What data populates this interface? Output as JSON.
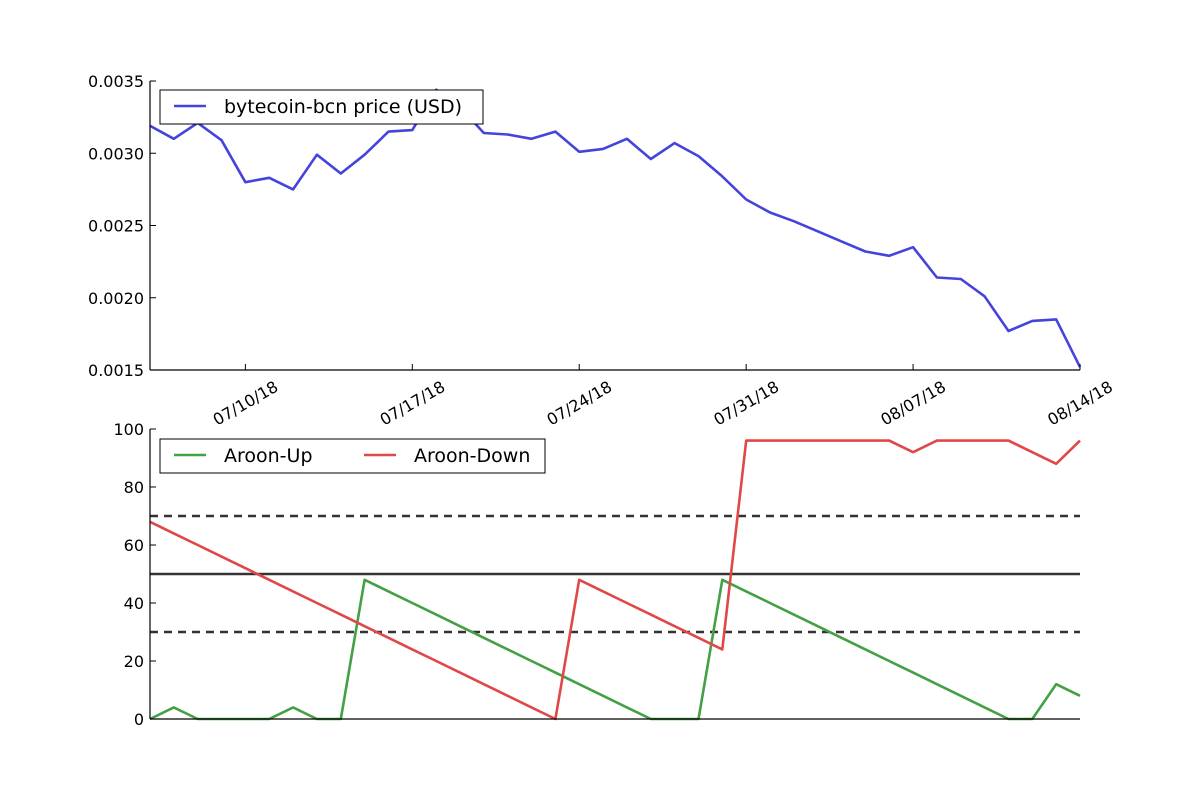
{
  "chart_data": [
    {
      "type": "line",
      "title": "",
      "xlabel": "",
      "ylabel": "",
      "x_tick_labels": [
        "07/10/18",
        "07/17/18",
        "07/24/18",
        "07/31/18",
        "08/07/18",
        "08/14/18"
      ],
      "y_tick_labels": [
        "0.0015",
        "0.0020",
        "0.0025",
        "0.0030",
        "0.0035"
      ],
      "ylim": [
        0.0015,
        0.0035
      ],
      "xlim": [
        "07/06/18",
        "08/14/18"
      ],
      "grid": false,
      "legend_position": "top-left",
      "x": [
        "07/06/18",
        "07/07/18",
        "07/08/18",
        "07/09/18",
        "07/10/18",
        "07/11/18",
        "07/12/18",
        "07/13/18",
        "07/14/18",
        "07/15/18",
        "07/16/18",
        "07/17/18",
        "07/18/18",
        "07/19/18",
        "07/20/18",
        "07/21/18",
        "07/22/18",
        "07/23/18",
        "07/24/18",
        "07/25/18",
        "07/26/18",
        "07/27/18",
        "07/28/18",
        "07/29/18",
        "07/30/18",
        "07/31/18",
        "08/01/18",
        "08/02/18",
        "08/03/18",
        "08/04/18",
        "08/05/18",
        "08/06/18",
        "08/07/18",
        "08/08/18",
        "08/09/18",
        "08/10/18",
        "08/11/18",
        "08/12/18",
        "08/13/18",
        "08/14/18"
      ],
      "series": [
        {
          "name": "bytecoin-bcn price (USD)",
          "color": "#4444dd",
          "values": [
            0.00319,
            0.0031,
            0.00321,
            0.00309,
            0.0028,
            0.00283,
            0.00275,
            0.00299,
            0.00286,
            0.00299,
            0.00315,
            0.00316,
            0.00344,
            0.00332,
            0.00314,
            0.00313,
            0.0031,
            0.00315,
            0.00301,
            0.00303,
            0.0031,
            0.00296,
            0.00307,
            0.00298,
            0.00284,
            0.00268,
            0.00259,
            0.00253,
            0.00246,
            0.00239,
            0.00232,
            0.00229,
            0.00235,
            0.00214,
            0.00213,
            0.00201,
            0.00177,
            0.00184,
            0.00185,
            0.00152
          ]
        }
      ]
    },
    {
      "type": "line",
      "title": "",
      "xlabel": "",
      "ylabel": "",
      "y_tick_labels": [
        "0",
        "20",
        "40",
        "60",
        "80",
        "100"
      ],
      "ylim": [
        0,
        100
      ],
      "grid": false,
      "legend_position": "top-left",
      "reference_lines": [
        {
          "value": 70,
          "style": "dashed",
          "color": "#333333"
        },
        {
          "value": 50,
          "style": "solid",
          "color": "#333333"
        },
        {
          "value": 30,
          "style": "dashed",
          "color": "#333333"
        }
      ],
      "series": [
        {
          "name": "Aroon-Up",
          "color": "#44a044",
          "values": [
            0,
            4,
            0,
            0,
            0,
            0,
            4,
            0,
            0,
            48,
            44,
            40,
            36,
            32,
            28,
            24,
            20,
            16,
            12,
            8,
            4,
            0,
            0,
            0,
            48,
            44,
            40,
            36,
            32,
            28,
            24,
            20,
            16,
            12,
            8,
            4,
            0,
            0,
            12,
            8
          ]
        },
        {
          "name": "Aroon-Down",
          "color": "#e04848",
          "values": [
            68,
            64,
            60,
            56,
            52,
            48,
            44,
            40,
            36,
            32,
            28,
            24,
            20,
            16,
            12,
            8,
            4,
            0,
            48,
            44,
            40,
            36,
            32,
            28,
            24,
            96,
            96,
            96,
            96,
            96,
            96,
            96,
            92,
            96,
            96,
            96,
            96,
            92,
            88,
            96
          ]
        }
      ]
    }
  ]
}
